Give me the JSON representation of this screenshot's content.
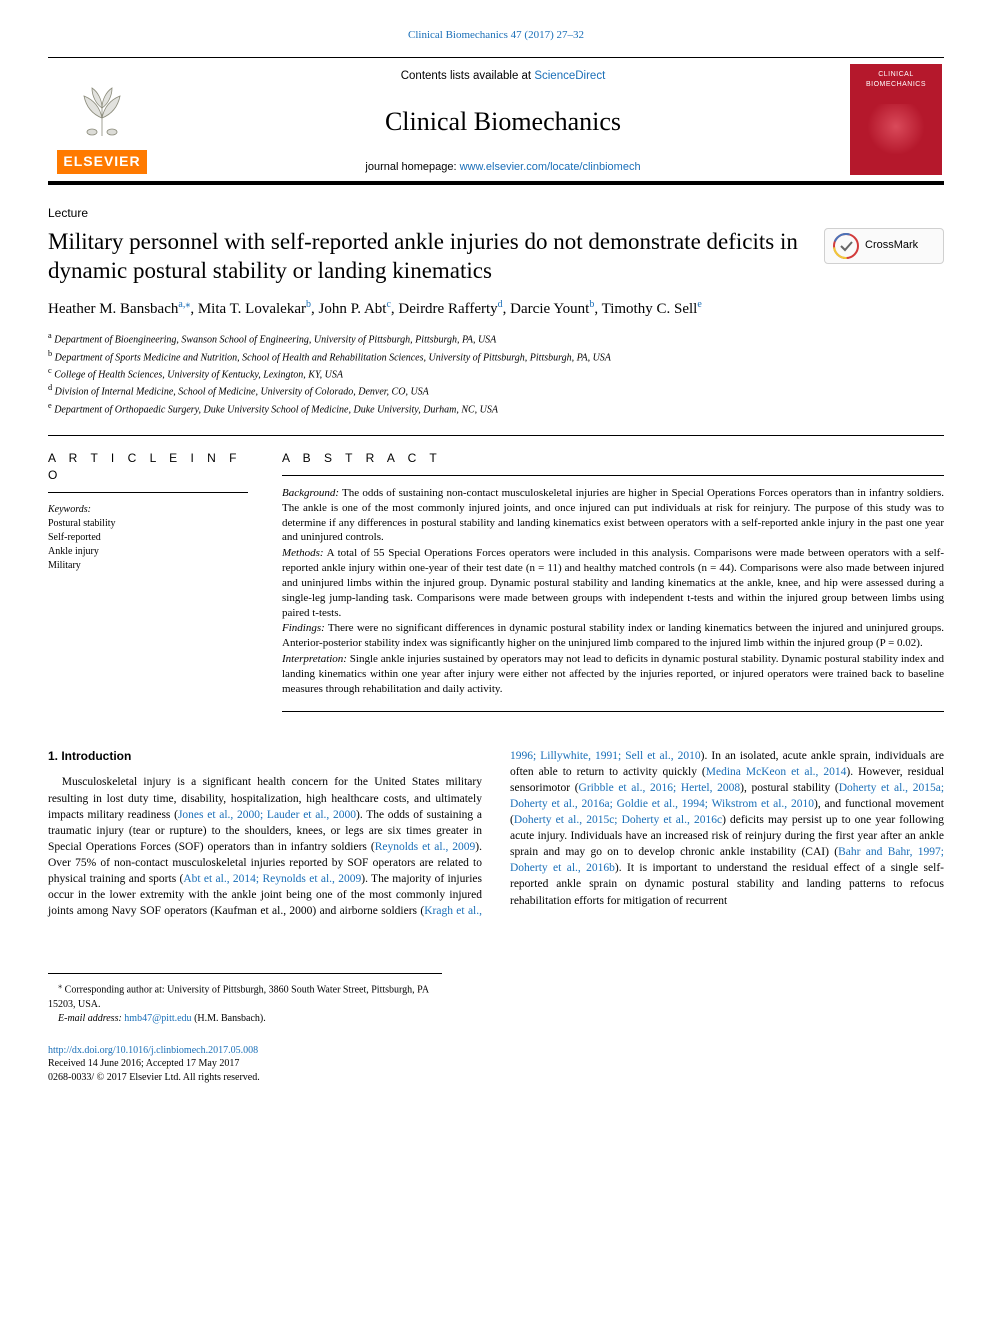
{
  "top_ref": "Clinical Biomechanics 47 (2017) 27–32",
  "header": {
    "contents_prefix": "Contents lists available at ",
    "contents_link": "ScienceDirect",
    "journal_name": "Clinical Biomechanics",
    "homepage_prefix": "journal homepage: ",
    "homepage_link": "www.elsevier.com/locate/clinbiomech",
    "elsevier_label": "ELSEVIER",
    "cover_label": "CLINICAL BIOMECHANICS"
  },
  "article_type": "Lecture",
  "title": "Military personnel with self-reported ankle injuries do not demonstrate deficits in dynamic postural stability or landing kinematics",
  "crossmark_label": "CrossMark",
  "authors": [
    {
      "name": "Heather M. Bansbach",
      "sup": "a,",
      "corr": true
    },
    {
      "name": "Mita T. Lovalekar",
      "sup": "b"
    },
    {
      "name": "John P. Abt",
      "sup": "c"
    },
    {
      "name": "Deirdre Rafferty",
      "sup": "d"
    },
    {
      "name": "Darcie Yount",
      "sup": "b"
    },
    {
      "name": "Timothy C. Sell",
      "sup": "e"
    }
  ],
  "affiliations": [
    {
      "key": "a",
      "text": "Department of Bioengineering, Swanson School of Engineering, University of Pittsburgh, Pittsburgh, PA, USA"
    },
    {
      "key": "b",
      "text": "Department of Sports Medicine and Nutrition, School of Health and Rehabilitation Sciences, University of Pittsburgh, Pittsburgh, PA, USA"
    },
    {
      "key": "c",
      "text": "College of Health Sciences, University of Kentucky, Lexington, KY, USA"
    },
    {
      "key": "d",
      "text": "Division of Internal Medicine, School of Medicine, University of Colorado, Denver, CO, USA"
    },
    {
      "key": "e",
      "text": "Department of Orthopaedic Surgery, Duke University School of Medicine, Duke University, Durham, NC, USA"
    }
  ],
  "article_info_head": "A R T I C L E  I N F O",
  "keywords_label": "Keywords:",
  "keywords": [
    "Postural stability",
    "Self-reported",
    "Ankle injury",
    "Military"
  ],
  "abstract_head": "A B S T R A C T",
  "abstract": {
    "background_label": "Background:",
    "background": "The odds of sustaining non-contact musculoskeletal injuries are higher in Special Operations Forces operators than in infantry soldiers. The ankle is one of the most commonly injured joints, and once injured can put individuals at risk for reinjury. The purpose of this study was to determine if any differences in postural stability and landing kinematics exist between operators with a self-reported ankle injury in the past one year and uninjured controls.",
    "methods_label": "Methods:",
    "methods": "A total of 55 Special Operations Forces operators were included in this analysis. Comparisons were made between operators with a self-reported ankle injury within one-year of their test date (n = 11) and healthy matched controls (n = 44). Comparisons were also made between injured and uninjured limbs within the injured group. Dynamic postural stability and landing kinematics at the ankle, knee, and hip were assessed during a single-leg jump-landing task. Comparisons were made between groups with independent t-tests and within the injured group between limbs using paired t-tests.",
    "findings_label": "Findings:",
    "findings": "There were no significant differences in dynamic postural stability index or landing kinematics between the injured and uninjured groups. Anterior-posterior stability index was significantly higher on the uninjured limb compared to the injured limb within the injured group (P = 0.02).",
    "interpretation_label": "Interpretation:",
    "interpretation": "Single ankle injuries sustained by operators may not lead to deficits in dynamic postural stability. Dynamic postural stability index and landing kinematics within one year after injury were either not affected by the injuries reported, or injured operators were trained back to baseline measures through rehabilitation and daily activity."
  },
  "section1_head": "1. Introduction",
  "intro_col1": "Musculoskeletal injury is a significant health concern for the United States military resulting in lost duty time, disability, hospitalization, high healthcare costs, and ultimately impacts military readiness (Jones et al., 2000; Lauder et al., 2000). The odds of sustaining a traumatic injury (tear or rupture) to the shoulders, knees, or legs are six times greater in Special Operations Forces (SOF) operators than in infantry soldiers (Reynolds et al., 2009). Over 75% of non-contact musculoskeletal injuries reported by SOF operators are related to physical training and sports (Abt et al., 2014; Reynolds et al., 2009). The majority of injuries occur in the lower extremity with the ankle joint being one of the most commonly injured joints among Navy SOF operators (Kaufman",
  "intro_col2": "et al., 2000) and airborne soldiers (Kragh et al., 1996; Lillywhite, 1991; Sell et al., 2010). In an isolated, acute ankle sprain, individuals are often able to return to activity quickly (Medina McKeon et al., 2014). However, residual sensorimotor (Gribble et al., 2016; Hertel, 2008), postural stability (Doherty et al., 2015a; Doherty et al., 2016a; Goldie et al., 1994; Wikstrom et al., 2010), and functional movement (Doherty et al., 2015c; Doherty et al., 2016c) deficits may persist up to one year following acute injury. Individuals have an increased risk of reinjury during the first year after an ankle sprain and may go on to develop chronic ankle instability (CAI) (Bahr and Bahr, 1997; Doherty et al., 2016b). It is important to understand the residual effect of a single self-reported ankle sprain on dynamic postural stability and landing patterns to refocus rehabilitation efforts for mitigation of recurrent",
  "footnote": {
    "corr_marker": "⁎",
    "corr_text": "Corresponding author at: University of Pittsburgh, 3860 South Water Street, Pittsburgh, PA 15203, USA.",
    "email_label": "E-mail address:",
    "email": "hmb47@pitt.edu",
    "email_owner": "(H.M. Bansbach)."
  },
  "footer": {
    "doi": "http://dx.doi.org/10.1016/j.clinbiomech.2017.05.008",
    "received": "Received 14 June 2016; Accepted 17 May 2017",
    "copyright": "0268-0033/ © 2017 Elsevier Ltd. All rights reserved."
  },
  "colors": {
    "link": "#1a6fb8",
    "elsevier_orange": "#ff7a00",
    "cover_red": "#b5182c"
  }
}
